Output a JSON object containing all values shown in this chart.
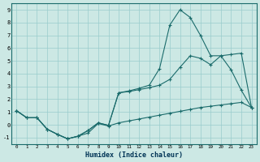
{
  "xlabel": "Humidex (Indice chaleur)",
  "background_color": "#cce8e4",
  "grid_color": "#99cccc",
  "line_color": "#1a6b6b",
  "xlim": [
    -0.5,
    23.5
  ],
  "ylim": [
    -1.5,
    9.5
  ],
  "xticks": [
    0,
    1,
    2,
    3,
    4,
    5,
    6,
    7,
    8,
    9,
    10,
    11,
    12,
    13,
    14,
    15,
    16,
    17,
    18,
    19,
    20,
    21,
    22,
    23
  ],
  "yticks": [
    -1,
    0,
    1,
    2,
    3,
    4,
    5,
    6,
    7,
    8,
    9
  ],
  "line1_x": [
    0,
    1,
    2,
    3,
    4,
    5,
    6,
    7,
    8,
    9,
    10,
    11,
    12,
    13,
    14,
    15,
    16,
    17,
    18,
    19,
    20,
    21,
    22,
    23
  ],
  "line1_y": [
    1.1,
    0.55,
    0.55,
    -0.35,
    -0.75,
    -1.1,
    -0.9,
    -0.65,
    0.1,
    -0.1,
    0.15,
    0.3,
    0.45,
    0.6,
    0.75,
    0.9,
    1.05,
    1.2,
    1.35,
    1.45,
    1.55,
    1.65,
    1.75,
    1.35
  ],
  "line2_x": [
    0,
    1,
    2,
    3,
    4,
    5,
    6,
    7,
    8,
    9,
    10,
    11,
    12,
    13,
    14,
    15,
    16,
    17,
    18,
    19,
    20,
    21,
    22,
    23
  ],
  "line2_y": [
    1.1,
    0.55,
    0.55,
    -0.35,
    -0.75,
    -1.1,
    -0.9,
    -0.45,
    0.15,
    -0.05,
    2.5,
    2.65,
    2.85,
    3.1,
    4.4,
    7.8,
    9.0,
    8.4,
    7.0,
    5.4,
    5.4,
    4.3,
    2.7,
    1.35
  ],
  "line3_x": [
    0,
    1,
    2,
    3,
    4,
    5,
    6,
    7,
    8,
    9,
    10,
    11,
    12,
    13,
    14,
    15,
    16,
    17,
    18,
    19,
    20,
    21,
    22,
    23
  ],
  "line3_y": [
    1.1,
    0.55,
    0.55,
    -0.35,
    -0.75,
    -1.1,
    -0.9,
    -0.45,
    0.15,
    -0.05,
    2.5,
    2.6,
    2.75,
    2.9,
    3.1,
    3.55,
    4.5,
    5.4,
    5.2,
    4.7,
    5.4,
    5.5,
    5.6,
    1.35
  ],
  "marker": "+",
  "markersize": 3,
  "linewidth": 0.8
}
